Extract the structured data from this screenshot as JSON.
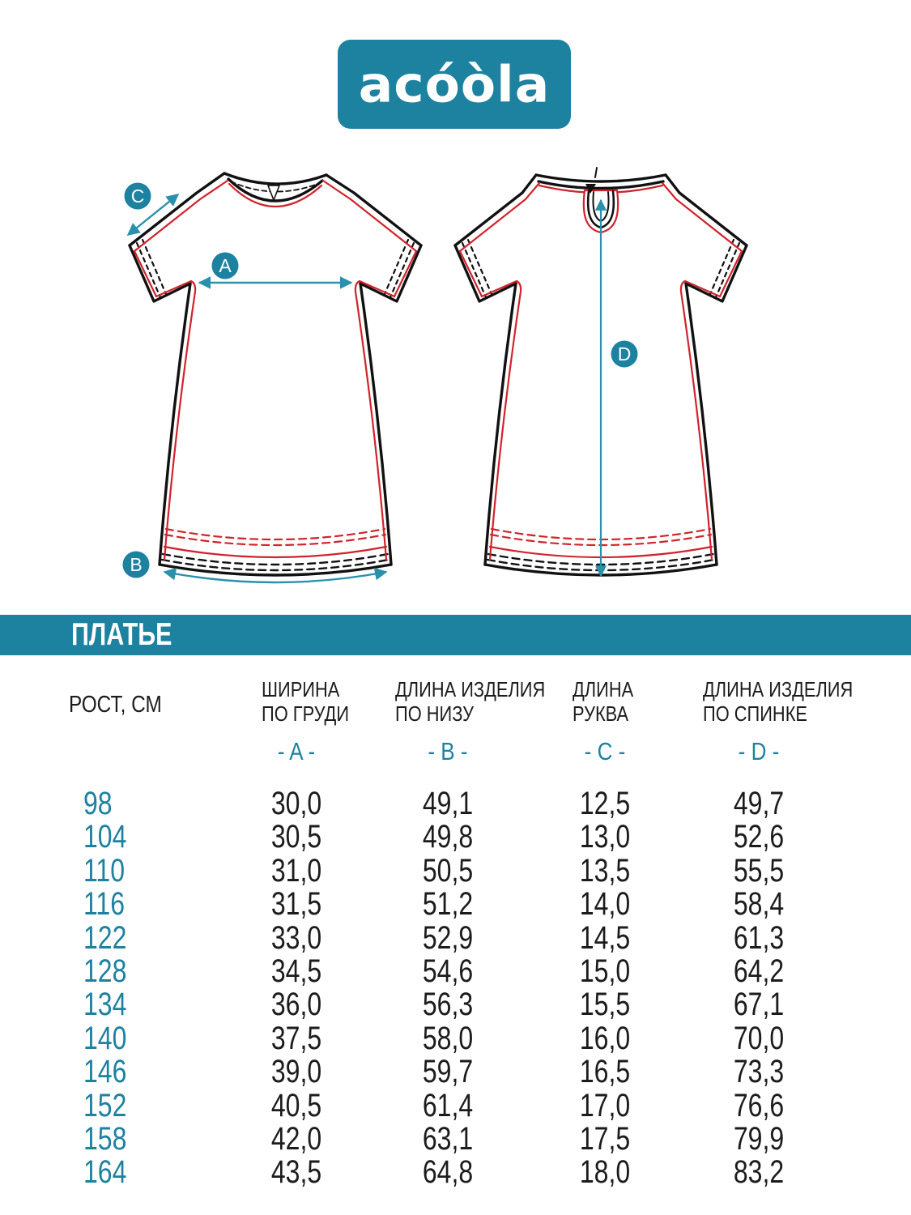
{
  "brand": {
    "logo_text": "acóòla"
  },
  "colors": {
    "accent": "#1d81a0",
    "arrow": "#2b90ab",
    "red": "#d1232b",
    "ink": "#1c1c1c"
  },
  "diagram": {
    "labels": {
      "a": "A",
      "b": "B",
      "c": "C",
      "d": "D"
    }
  },
  "section": {
    "title": "ПЛАТЬЕ"
  },
  "table": {
    "row_header": "РОСТ, СМ",
    "columns": [
      {
        "letter": "- A -",
        "title_lines": [
          "ШИРИНА",
          "ПО ГРУДИ"
        ]
      },
      {
        "letter": "- B -",
        "title_lines": [
          "ДЛИНА ИЗДЕЛИЯ",
          "ПО НИЗУ"
        ]
      },
      {
        "letter": "- C -",
        "title_lines": [
          "ДЛИНА",
          "РУКВА"
        ]
      },
      {
        "letter": "- D -",
        "title_lines": [
          "ДЛИНА ИЗДЕЛИЯ",
          "ПО СПИНКЕ"
        ]
      }
    ],
    "rows": [
      {
        "height": "98",
        "values": [
          "30,0",
          "49,1",
          "12,5",
          "49,7"
        ]
      },
      {
        "height": "104",
        "values": [
          "30,5",
          "49,8",
          "13,0",
          "52,6"
        ]
      },
      {
        "height": "110",
        "values": [
          "31,0",
          "50,5",
          "13,5",
          "55,5"
        ]
      },
      {
        "height": "116",
        "values": [
          "31,5",
          "51,2",
          "14,0",
          "58,4"
        ]
      },
      {
        "height": "122",
        "values": [
          "33,0",
          "52,9",
          "14,5",
          "61,3"
        ]
      },
      {
        "height": "128",
        "values": [
          "34,5",
          "54,6",
          "15,0",
          "64,2"
        ]
      },
      {
        "height": "134",
        "values": [
          "36,0",
          "56,3",
          "15,5",
          "67,1"
        ]
      },
      {
        "height": "140",
        "values": [
          "37,5",
          "58,0",
          "16,0",
          "70,0"
        ]
      },
      {
        "height": "146",
        "values": [
          "39,0",
          "59,7",
          "16,5",
          "73,3"
        ]
      },
      {
        "height": "152",
        "values": [
          "40,5",
          "61,4",
          "17,0",
          "76,6"
        ]
      },
      {
        "height": "158",
        "values": [
          "42,0",
          "63,1",
          "17,5",
          "79,9"
        ]
      },
      {
        "height": "164",
        "values": [
          "43,5",
          "64,8",
          "18,0",
          "83,2"
        ]
      }
    ]
  }
}
